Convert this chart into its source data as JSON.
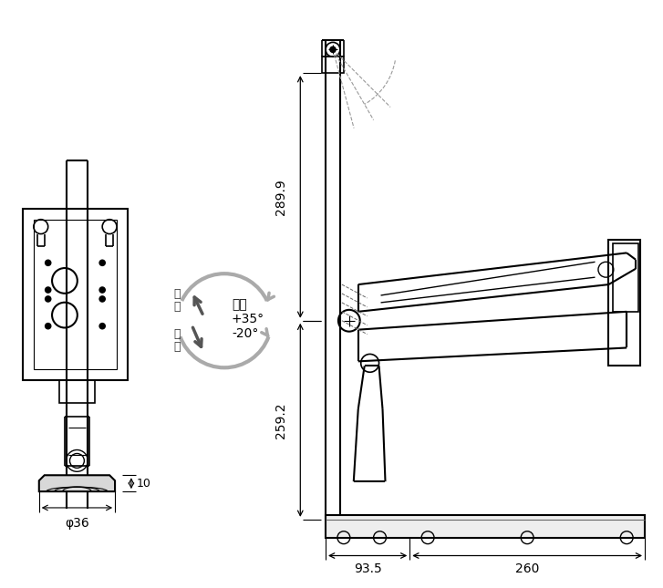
{
  "bg_color": "#ffffff",
  "lc": "#000000",
  "gc": "#888888",
  "figsize": [
    7.27,
    6.45
  ],
  "dpi": 100,
  "texts": {
    "tilt": "倾斜",
    "plus35": "+35°",
    "minus20": "-20°",
    "back": "向\n后",
    "front": "向\n前",
    "dim_289": "289.9",
    "dim_259": "259.2",
    "dim_10": "10",
    "dim_phi36": "φ36",
    "dim_93": "93.5",
    "dim_260": "260"
  }
}
